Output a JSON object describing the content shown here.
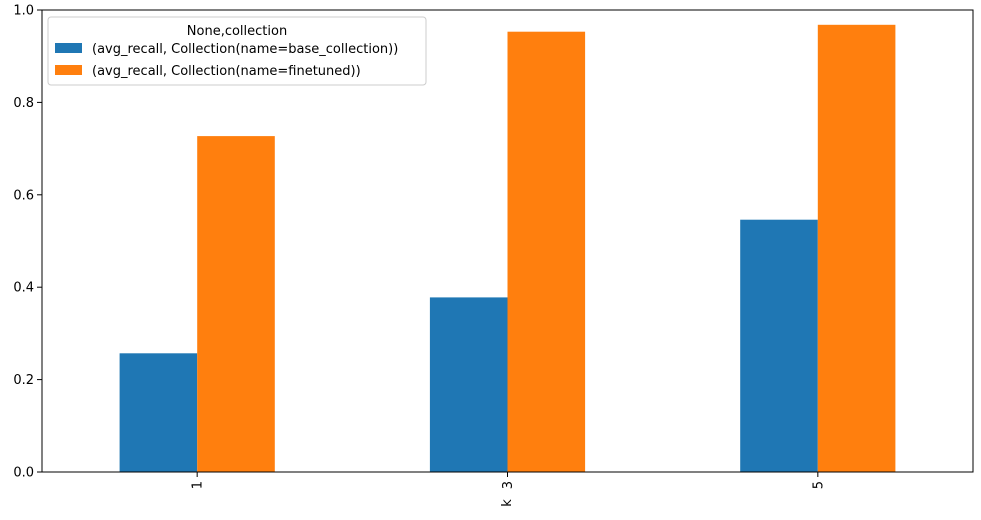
{
  "chart_data": {
    "type": "bar",
    "title": "",
    "xlabel": "k",
    "ylabel": "",
    "categories": [
      "1",
      "3",
      "5"
    ],
    "ylim": [
      0,
      1.0
    ],
    "yticks": [
      "0.0",
      "0.2",
      "0.4",
      "0.6",
      "0.8",
      "1.0"
    ],
    "grid": false,
    "legend": {
      "title": "None,collection",
      "position": "top-left"
    },
    "series": [
      {
        "name": "(avg_recall, Collection(name=base_collection))",
        "color": "#1f77b4",
        "values": [
          0.257,
          0.378,
          0.546
        ]
      },
      {
        "name": "(avg_recall, Collection(name=finetuned))",
        "color": "#ff7f0e",
        "values": [
          0.727,
          0.953,
          0.968
        ]
      }
    ]
  }
}
